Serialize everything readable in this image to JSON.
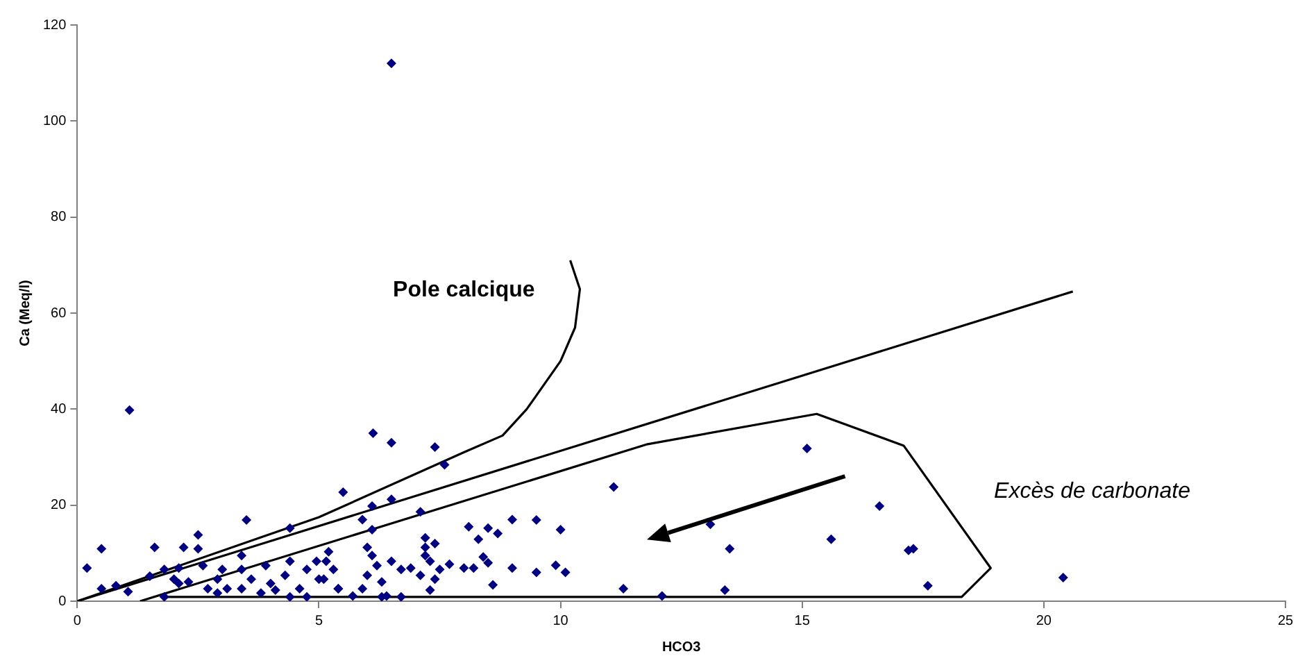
{
  "chart_data": {
    "type": "scatter",
    "xlabel": "HCO3",
    "ylabel": "Ca (Meq/l)",
    "xlim": [
      0,
      25
    ],
    "xticks": [
      0,
      5,
      10,
      15,
      20,
      25
    ],
    "ylim": [
      0,
      120
    ],
    "yticks": [
      0,
      20,
      40,
      60,
      80,
      100,
      120
    ],
    "grid": false,
    "legend": false,
    "marker": "diamond",
    "annotations": [
      "Pole calcique",
      "Excès de carbonate"
    ],
    "series": [
      {
        "color": "#000080",
        "x": [
          6.5,
          1.08,
          6.12,
          6.5,
          7.4,
          7.6,
          5.5,
          6.5,
          6.1,
          7.1,
          5.9,
          6.1,
          8.1,
          8.5,
          9.0,
          9.5,
          10.0,
          8.3,
          8.7,
          7.2,
          7.4,
          7.2,
          7.7,
          8.0,
          8.2,
          8.4,
          8.5,
          9.0,
          9.5,
          9.9,
          10.1,
          8.6,
          7.3,
          6.7,
          6.3,
          15.1,
          11.1,
          16.6,
          13.1,
          15.6,
          13.5,
          17.2,
          17.3,
          11.3,
          12.1,
          13.4,
          17.6,
          20.4,
          0.2,
          0.5,
          1.6,
          2.2,
          2.5,
          2.5,
          3.5,
          4.4,
          0.5,
          0.8,
          1.05,
          1.5,
          1.8,
          2.1,
          2.0,
          2.3,
          2.6,
          2.7,
          2.9,
          3.0,
          3.1,
          3.4,
          3.4,
          3.6,
          3.9,
          4.0,
          4.3,
          4.4,
          4.6,
          4.75,
          4.95,
          5.1,
          5.2,
          5.4,
          1.8,
          4.4,
          4.75,
          2.9,
          2.1,
          3.4,
          3.8,
          4.1,
          5.15,
          5.3,
          5.0,
          5.4,
          6.0,
          6.1,
          6.2,
          6.0,
          6.3,
          5.9,
          6.5,
          6.7,
          6.9,
          7.1,
          7.3,
          7.4,
          7.5,
          7.2,
          6.4,
          5.7
        ],
        "values": [
          112,
          39.8,
          35.0,
          33.0,
          32.1,
          28.4,
          22.7,
          21.2,
          19.8,
          18.6,
          17.0,
          14.9,
          15.5,
          15.2,
          17.0,
          16.9,
          14.9,
          12.9,
          14.1,
          13.2,
          12.0,
          11.2,
          7.7,
          6.9,
          6.9,
          9.2,
          8.0,
          6.9,
          6.0,
          7.5,
          6.0,
          3.4,
          2.3,
          0.9,
          0.9,
          31.8,
          23.8,
          19.8,
          16.0,
          12.9,
          10.9,
          10.6,
          10.9,
          2.6,
          1.1,
          2.3,
          3.2,
          4.9,
          6.9,
          10.9,
          11.2,
          11.2,
          13.8,
          10.9,
          16.9,
          15.2,
          2.6,
          3.2,
          2.0,
          5.2,
          6.6,
          6.9,
          4.6,
          4.0,
          7.4,
          2.6,
          4.6,
          6.6,
          2.6,
          9.5,
          6.6,
          4.6,
          7.4,
          3.7,
          5.4,
          8.3,
          2.6,
          6.6,
          8.3,
          4.6,
          10.3,
          2.6,
          0.9,
          0.9,
          0.9,
          1.7,
          3.7,
          2.6,
          1.7,
          2.3,
          8.3,
          6.6,
          4.6,
          2.6,
          11.2,
          9.5,
          7.4,
          5.4,
          4.0,
          2.6,
          8.3,
          6.6,
          6.9,
          5.4,
          8.3,
          4.6,
          6.6,
          9.5,
          1.1,
          1.1
        ]
      },
      {
        "type": "line",
        "marker": "none",
        "color": "#000000",
        "x": [
          0,
          5,
          8,
          8.8,
          9.3,
          10,
          10.3,
          10.4,
          10.2
        ],
        "values": [
          0,
          17.5,
          31,
          34.5,
          40,
          50,
          57,
          65,
          71
        ]
      },
      {
        "type": "line",
        "marker": "none",
        "color": "#000000",
        "x": [
          0,
          20.6
        ],
        "values": [
          0,
          64.5
        ]
      },
      {
        "type": "line",
        "marker": "none",
        "color": "#000000",
        "x": [
          1.3,
          11.8,
          15.3,
          17.1,
          18.9,
          18.3,
          1.8
        ],
        "values": [
          0,
          32.7,
          39,
          32.4,
          6.9,
          0.9,
          0.9
        ]
      }
    ]
  }
}
